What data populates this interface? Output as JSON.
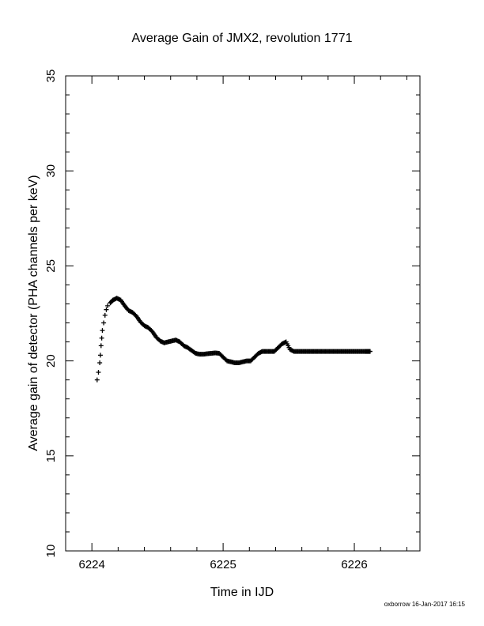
{
  "chart_data": {
    "type": "scatter",
    "title": "Average Gain of JMX2, revolution 1771",
    "xlabel": "Time in IJD",
    "ylabel": "Average gain of detector (PHA channels per keV)",
    "xlim": [
      6223.8,
      6226.5
    ],
    "ylim": [
      10,
      35
    ],
    "xticks": [
      6224,
      6225,
      6226
    ],
    "xtick_labels": [
      "6224",
      "6225",
      "6226"
    ],
    "yticks": [
      10,
      15,
      20,
      25,
      30,
      35
    ],
    "ytick_labels": [
      "10",
      "15",
      "20",
      "25",
      "30",
      "35"
    ],
    "grid": false,
    "marker": "plus",
    "color": "#000000",
    "series": [
      {
        "x": [
          6224.04,
          6224.05,
          6224.06,
          6224.065,
          6224.07,
          6224.075,
          6224.08,
          6224.09,
          6224.1,
          6224.11,
          6224.12,
          6224.14,
          6224.16,
          6224.19,
          6224.22,
          6224.25,
          6224.28,
          6224.31,
          6224.34,
          6224.37,
          6224.4,
          6224.43,
          6224.46,
          6224.49,
          6224.52,
          6224.55,
          6224.58,
          6224.61,
          6224.64,
          6224.67,
          6224.7,
          6224.73,
          6224.76,
          6224.79,
          6224.82,
          6224.85,
          6224.88,
          6224.91,
          6224.94,
          6224.97,
          6225.0,
          6225.03,
          6225.06,
          6225.09,
          6225.12,
          6225.15,
          6225.18,
          6225.21,
          6225.24,
          6225.27,
          6225.3,
          6225.33,
          6225.36,
          6225.39,
          6225.42,
          6225.45,
          6225.48,
          6225.51,
          6225.54,
          6225.57,
          6225.6,
          6225.63,
          6225.66,
          6225.69,
          6225.72,
          6225.75,
          6225.78,
          6225.81,
          6225.84,
          6225.87,
          6225.9,
          6225.93,
          6225.96,
          6225.99,
          6226.02,
          6226.05,
          6226.08,
          6226.1,
          6226.12
        ],
        "y": [
          19.0,
          19.4,
          19.9,
          20.3,
          20.8,
          21.2,
          21.6,
          22.0,
          22.4,
          22.7,
          22.9,
          23.05,
          23.2,
          23.3,
          23.2,
          22.9,
          22.65,
          22.55,
          22.35,
          22.05,
          21.85,
          21.75,
          21.55,
          21.25,
          21.05,
          20.95,
          21.0,
          21.05,
          21.1,
          21.0,
          20.8,
          20.7,
          20.55,
          20.4,
          20.35,
          20.35,
          20.38,
          20.4,
          20.42,
          20.4,
          20.2,
          20.0,
          19.95,
          19.9,
          19.9,
          19.95,
          20.0,
          20.0,
          20.2,
          20.4,
          20.5,
          20.5,
          20.5,
          20.5,
          20.7,
          20.9,
          21.0,
          20.6,
          20.5,
          20.5,
          20.5,
          20.5,
          20.5,
          20.5,
          20.5,
          20.5,
          20.5,
          20.5,
          20.5,
          20.5,
          20.5,
          20.5,
          20.5,
          20.5,
          20.5,
          20.5,
          20.5,
          20.5,
          20.5
        ]
      }
    ]
  },
  "footer": {
    "stamp": "oxborrow 16-Jan-2017 16:15"
  }
}
